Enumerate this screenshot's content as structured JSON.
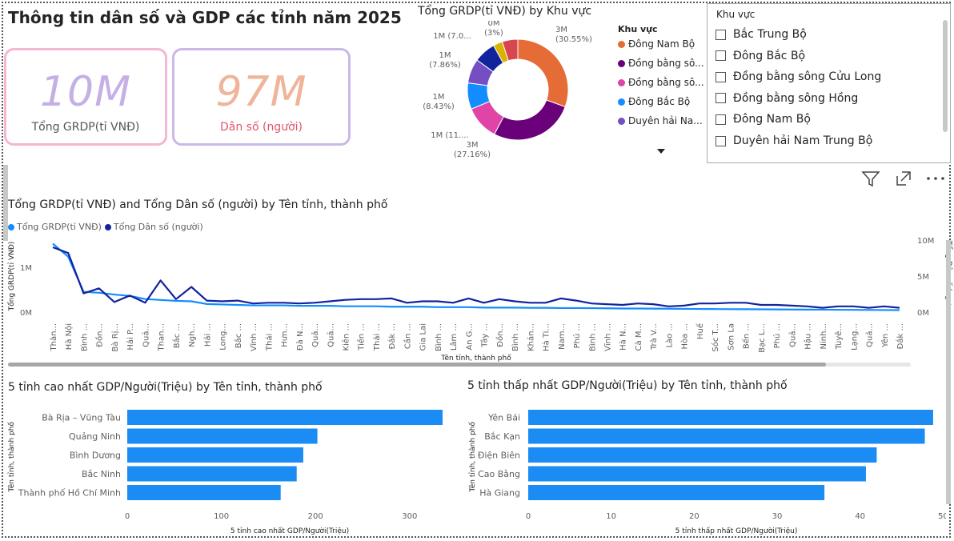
{
  "page_title": "Thông tin dân số và GDP các tỉnh năm 2025",
  "cards": [
    {
      "value": "10M",
      "label": "Tổng GRDP(tỉ VNĐ)"
    },
    {
      "value": "97M",
      "label": "Dân số (người)"
    }
  ],
  "slicer": {
    "title": "Khu vực",
    "items": [
      "Bắc Trung Bộ",
      "Đông Bắc Bộ",
      "Đồng bằng sông Cửu Long",
      "Đồng bằng sông Hồng",
      "Đông Nam Bộ",
      "Duyên hải Nam Trung Bộ"
    ]
  },
  "colors": {
    "primary": "#118dff",
    "secondary": "#12239e",
    "bar": "#1b8cf3"
  },
  "toolbar_icons": [
    "filter-icon",
    "focus-mode-icon",
    "more-options-icon"
  ],
  "chart_data": [
    {
      "type": "pie",
      "title": "Tổng GRDP(tỉ VNĐ) by Khu vực",
      "legend_title": "Khu vực",
      "legend": [
        "Đông Nam Bộ",
        "Đồng bằng sô...",
        "Đồng bằng sô...",
        "Đông Bắc Bộ",
        "Duyên hải Na..."
      ],
      "legend_placement": "right",
      "slices": [
        {
          "label": "3M",
          "pct": "(30.55%)",
          "value": 30.55,
          "color": "#e66c37"
        },
        {
          "label": "3M",
          "pct": "(27.16%)",
          "value": 27.16,
          "color": "#6b007b"
        },
        {
          "label": "1M (11....",
          "pct": "",
          "value": 11.0,
          "color": "#e044a7"
        },
        {
          "label": "1M",
          "pct": "(8.43%)",
          "value": 8.43,
          "color": "#118dff"
        },
        {
          "label": "1M",
          "pct": "(7.86%)",
          "value": 7.86,
          "color": "#744ec2"
        },
        {
          "label": "1M (7.0...",
          "pct": "",
          "value": 7.0,
          "color": "#12239e"
        },
        {
          "label": "0M",
          "pct": "(3%)",
          "value": 3.0,
          "color": "#d9b300"
        },
        {
          "label": "",
          "pct": "",
          "value": 5.0,
          "color": "#d64550"
        }
      ]
    },
    {
      "type": "line",
      "title": "Tổng GRDP(tỉ VNĐ) and Tổng Dân số (người) by Tên tỉnh, thành phố",
      "xlabel": "Tên tỉnh, thành phố",
      "ylabel": "Tổng GRDP(tỉ VNĐ)",
      "ylabel_right": "Tổng Dân số (ngư...",
      "yticks_left": [
        "1M",
        "0M"
      ],
      "yticks_right": [
        "10M",
        "5M",
        "0M"
      ],
      "ylim_left": [
        0,
        1600000
      ],
      "ylim_right": [
        0,
        10000000
      ],
      "grid": false,
      "legend_placement": "top-left",
      "categories": [
        "Thàn...",
        "Hà Nội",
        "Bình ...",
        "Đồn...",
        "Bà Rị...",
        "Hải P...",
        "Quả...",
        "Than...",
        "Bắc ...",
        "Ngh...",
        "Hải ...",
        "Long...",
        "Bắc ...",
        "Vĩnh ...",
        "Thái ...",
        "Hưn...",
        "Đà N...",
        "Quả...",
        "Quả...",
        "Kiên ...",
        "Tiền ...",
        "Thái ...",
        "Đắk ...",
        "Cần ...",
        "Gia Lai",
        "Bình ...",
        "Lâm ...",
        "An G...",
        "Tây ...",
        "Đồn...",
        "Bình ...",
        "Khán...",
        "Hà Ti...",
        "Nam...",
        "Phú ...",
        "Bình ...",
        "Vĩnh ...",
        "Hà N...",
        "Cà M...",
        "Trà V...",
        "Lào ...",
        "Hòa ...",
        "Huế",
        "Sóc T...",
        "Sơn La",
        "Bến ...",
        "Bạc L...",
        "Phú ...",
        "Quả...",
        "Hậu ...",
        "Ninh...",
        "Tuyê...",
        "Lạng...",
        "Quả...",
        "Yên ...",
        "Đắk ..."
      ],
      "series": [
        {
          "name": "Tổng GRDP(tỉ VNĐ)",
          "color": "#118dff",
          "values": [
            1520000,
            1230000,
            450000,
            430000,
            390000,
            360000,
            290000,
            270000,
            250000,
            240000,
            180000,
            170000,
            160000,
            150000,
            150000,
            150000,
            140000,
            140000,
            140000,
            130000,
            130000,
            130000,
            120000,
            120000,
            120000,
            110000,
            110000,
            110000,
            100000,
            100000,
            100000,
            95000,
            95000,
            90000,
            90000,
            88000,
            85000,
            80000,
            80000,
            78000,
            75000,
            72000,
            70000,
            68000,
            66000,
            64000,
            62000,
            60000,
            58000,
            56000,
            54000,
            52000,
            50000,
            48000,
            46000,
            44000
          ]
        },
        {
          "name": "Tổng Dân số (người)",
          "color": "#12239e",
          "values": [
            9000000,
            8200000,
            2600000,
            3300000,
            1400000,
            2300000,
            1300000,
            4400000,
            1800000,
            3500000,
            1600000,
            1500000,
            1600000,
            1200000,
            1300000,
            1300000,
            1200000,
            1300000,
            1500000,
            1700000,
            1800000,
            1800000,
            1900000,
            1300000,
            1500000,
            1500000,
            1300000,
            1900000,
            1300000,
            1800000,
            1500000,
            1300000,
            1300000,
            1900000,
            1600000,
            1200000,
            1100000,
            1000000,
            1200000,
            1100000,
            800000,
            900000,
            1200000,
            1200000,
            1300000,
            1300000,
            1000000,
            1000000,
            900000,
            800000,
            600000,
            800000,
            800000,
            600000,
            800000,
            600000
          ]
        }
      ]
    },
    {
      "type": "bar",
      "orientation": "horizontal",
      "title": "5 tỉnh cao nhất GDP/Người(Triệu) by Tên tỉnh, thành phố",
      "xlabel": "5 tỉnh cao nhất GDP/Người(Triệu)",
      "ylabel": "Tên tỉnh, thành phố",
      "categories": [
        "Bà Rịa – Vũng Tàu",
        "Quảng Ninh",
        "Bình Dương",
        "Bắc Ninh",
        "Thành phố Hồ Chí Minh"
      ],
      "values": [
        335,
        202,
        187,
        180,
        163
      ],
      "xlim": [
        0,
        335
      ],
      "xticks": [
        0,
        100,
        200,
        300
      ]
    },
    {
      "type": "bar",
      "orientation": "horizontal",
      "title": "5 tỉnh thấp nhất GDP/Người(Triệu) by Tên tỉnh, thành phố",
      "xlabel": "5 tỉnh thấp nhất GDP/Người(Triệu)",
      "ylabel": "Tên tỉnh, thành phố",
      "categories": [
        "Yên Bái",
        "Bắc Kạn",
        "Điện Biên",
        "Cao Bằng",
        "Hà Giang"
      ],
      "values": [
        48.8,
        47.8,
        42.0,
        40.7,
        35.7
      ],
      "xlim": [
        0,
        49
      ],
      "xticks": [
        0,
        10,
        20,
        30,
        40,
        50
      ]
    }
  ]
}
